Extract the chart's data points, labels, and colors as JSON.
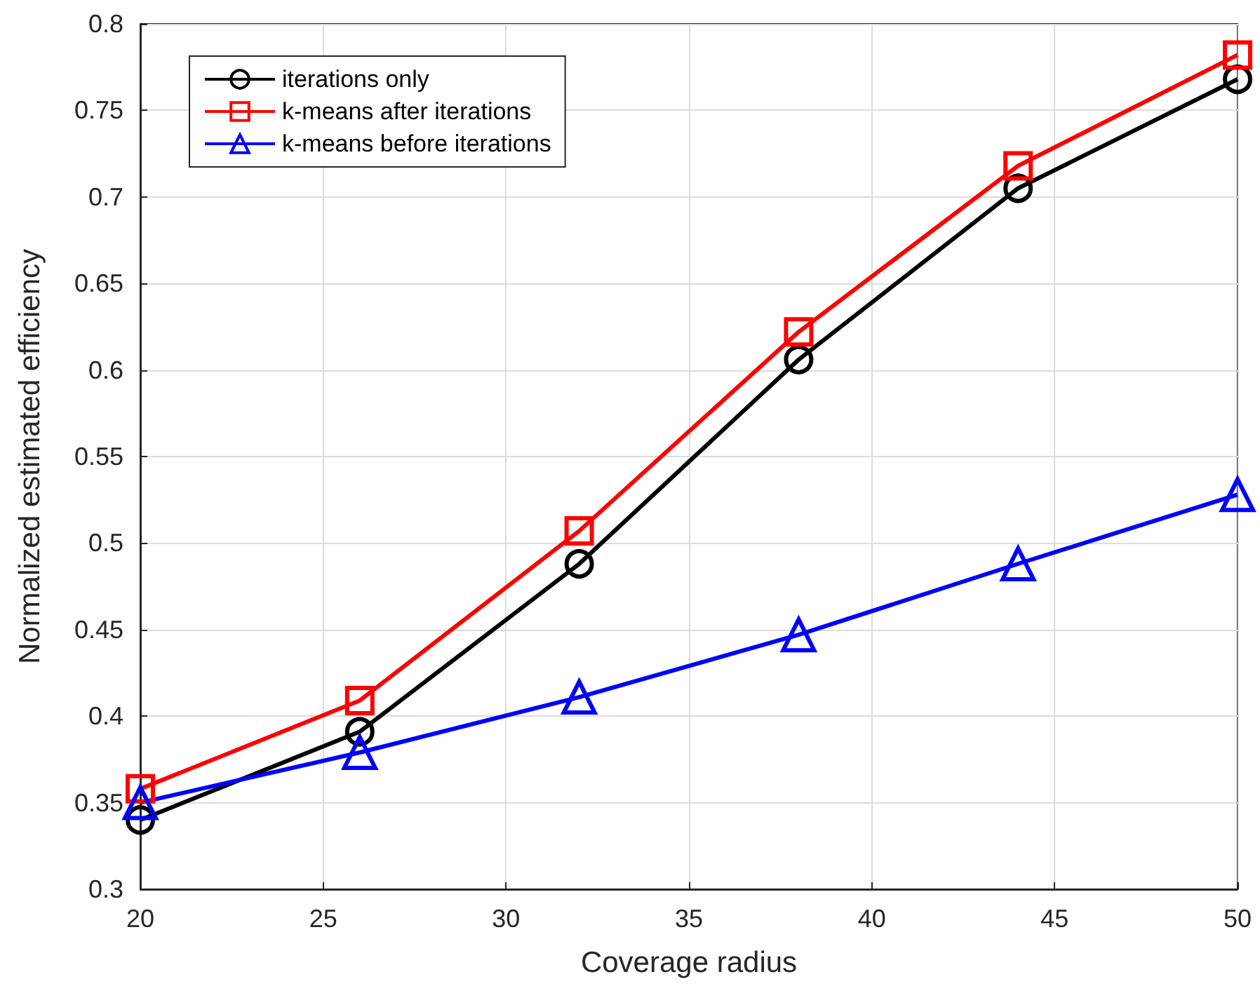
{
  "chart_data": {
    "type": "line",
    "xlabel": "Coverage radius",
    "ylabel": "Normalized estimated efficiency",
    "x": [
      20,
      26,
      32,
      38,
      44,
      50
    ],
    "series": [
      {
        "name": "iterations only",
        "color": "#000000",
        "marker": "circle",
        "values": [
          0.34,
          0.391,
          0.488,
          0.606,
          0.705,
          0.768
        ]
      },
      {
        "name": "k-means after iterations",
        "color": "#ff0000",
        "marker": "square",
        "values": [
          0.358,
          0.409,
          0.507,
          0.622,
          0.718,
          0.782
        ]
      },
      {
        "name": "k-means before iterations",
        "color": "#0000ff",
        "marker": "triangle",
        "values": [
          0.35,
          0.379,
          0.411,
          0.447,
          0.488,
          0.528
        ]
      }
    ],
    "xlim": [
      20,
      50
    ],
    "xticks": [
      20,
      25,
      30,
      35,
      40,
      45,
      50
    ],
    "ylim": [
      0.3,
      0.8
    ],
    "yticks": [
      0.3,
      0.35,
      0.4,
      0.45,
      0.5,
      0.55,
      0.6,
      0.65,
      0.7,
      0.75,
      0.8
    ],
    "grid": true,
    "legend": "top left",
    "line_style": "solid"
  }
}
